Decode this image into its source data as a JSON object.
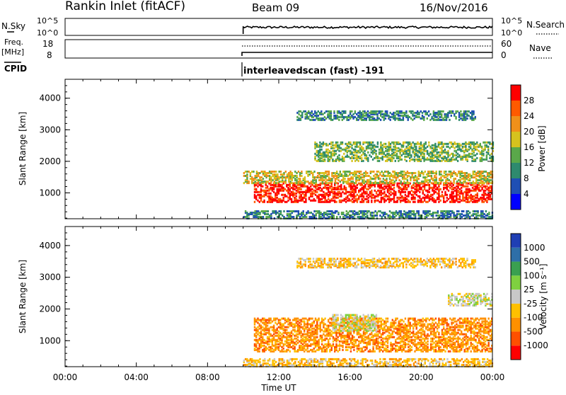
{
  "header": {
    "station": "Rankin Inlet (fitACF)",
    "beam": "Beam 09",
    "date": "16/Nov/2016"
  },
  "noise_panel": {
    "left_label": "N.Sky",
    "left_ticks": [
      "10^5",
      "10^0"
    ],
    "right_ticks": [
      "10^5",
      "10^0"
    ],
    "right_label": "N.Search"
  },
  "freq_panel": {
    "left_label_line1": "Freq.",
    "left_label_line2": "[MHz]",
    "left_ticks": [
      "18",
      "8"
    ],
    "right_ticks": [
      "60",
      "0"
    ],
    "right_label": "Nave"
  },
  "cpid": {
    "label": "CPID",
    "text": "interleavedscan (fast) -191"
  },
  "x_axis": {
    "label": "Time UT",
    "tick_labels": [
      "00:00",
      "04:00",
      "08:00",
      "12:00",
      "16:00",
      "20:00",
      "00:00"
    ]
  },
  "chart_data": [
    {
      "type": "heatmap",
      "parameter": "Power",
      "ylabel": "Slant Range [km]",
      "y_ticks": [
        1000,
        2000,
        3000,
        4000
      ],
      "ylim": [
        180,
        4600
      ],
      "xlim_hours": [
        0,
        24
      ],
      "data_start_hour": 10,
      "colorbar": {
        "label": "Power [dB]",
        "tick_labels": [
          "4",
          "8",
          "12",
          "16",
          "20",
          "24",
          "28"
        ],
        "colors": [
          "#0000ff",
          "#1f4fb4",
          "#2e8a6e",
          "#5aa84a",
          "#d6c21e",
          "#f0901a",
          "#ff5a00",
          "#ff0000"
        ]
      },
      "echo_bands": [
        {
          "t_start": 10.6,
          "t_end": 24,
          "range_min": 700,
          "range_max": 1300,
          "value_db": 28
        },
        {
          "t_start": 10,
          "t_end": 24,
          "range_min": 1300,
          "range_max": 1700,
          "value_db": 16
        },
        {
          "t_start": 10,
          "t_end": 24,
          "range_min": 180,
          "range_max": 450,
          "value_db": 8
        },
        {
          "t_start": 14,
          "t_end": 24,
          "range_min": 2000,
          "range_max": 2600,
          "value_db": 12
        },
        {
          "t_start": 13,
          "t_end": 23,
          "range_min": 3300,
          "range_max": 3600,
          "value_db": 8
        }
      ]
    },
    {
      "type": "heatmap",
      "parameter": "Velocity",
      "ylabel": "Slant Range [km]",
      "y_ticks": [
        1000,
        2000,
        3000,
        4000
      ],
      "ylim": [
        180,
        4600
      ],
      "xlim_hours": [
        0,
        24
      ],
      "data_start_hour": 10,
      "colorbar": {
        "label": "Velocity [m s⁻¹]",
        "tick_labels": [
          "1000",
          "500",
          "100",
          "25",
          "-25",
          "-100",
          "-500",
          "-1000"
        ],
        "colors": [
          "#1f3fb4",
          "#2e6fa8",
          "#3aa050",
          "#7fd040",
          "#c8c8c8",
          "#ffc000",
          "#ff9000",
          "#ff5000",
          "#ff0000"
        ]
      },
      "echo_bands": [
        {
          "t_start": 10.6,
          "t_end": 24,
          "range_min": 650,
          "range_max": 1700,
          "value_ms": -500
        },
        {
          "t_start": 15,
          "t_end": 17.5,
          "range_min": 1300,
          "range_max": 1800,
          "value_ms": 0
        },
        {
          "t_start": 21.5,
          "t_end": 24,
          "range_min": 2100,
          "range_max": 2500,
          "value_ms": 0
        },
        {
          "t_start": 10,
          "t_end": 24,
          "range_min": 180,
          "range_max": 450,
          "value_ms": -100
        },
        {
          "t_start": 13,
          "t_end": 23,
          "range_min": 3300,
          "range_max": 3600,
          "value_ms": -100
        }
      ]
    }
  ]
}
